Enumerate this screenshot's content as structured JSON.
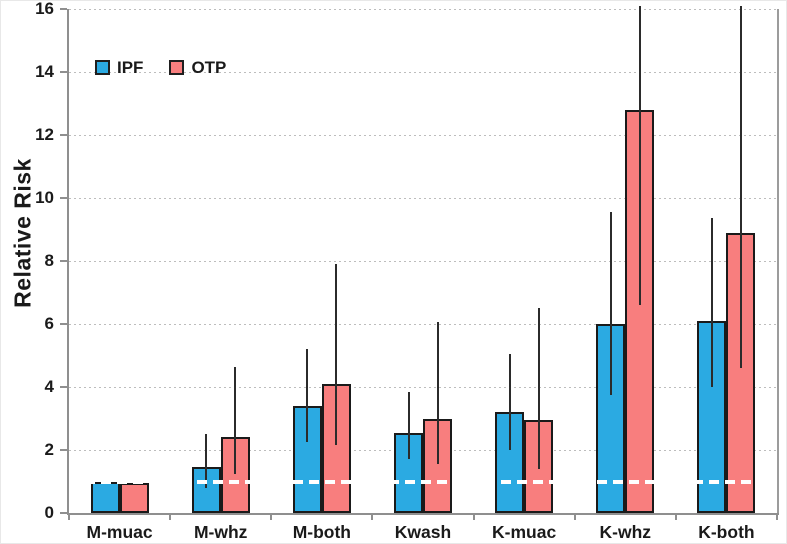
{
  "chart_data": {
    "type": "bar",
    "title": "",
    "ylabel": "Relative Risk",
    "xlabel": "",
    "ylim": [
      0,
      16
    ],
    "yticks": [
      0,
      2,
      4,
      6,
      8,
      10,
      12,
      14,
      16
    ],
    "grid": "horizontal dotted gridlines at each ytick",
    "legend_position": "inside top-left",
    "reference_line": {
      "value": 1,
      "color": "#ffffff",
      "style": "dashed"
    },
    "categories": [
      "M-muac",
      "M-whz",
      "M-both",
      "Kwash",
      "K-muac",
      "K-whz",
      "K-both"
    ],
    "series": [
      {
        "name": "IPF",
        "color": "#2BAAE2",
        "values": [
          1.0,
          1.45,
          3.4,
          2.55,
          3.2,
          6.0,
          6.1
        ],
        "ci_low": [
          null,
          0.8,
          2.25,
          1.7,
          2.0,
          3.75,
          4.0
        ],
        "ci_high": [
          null,
          2.5,
          5.2,
          3.85,
          5.05,
          9.55,
          9.35
        ]
      },
      {
        "name": "OTP",
        "color": "#F87E7E",
        "values": [
          0.95,
          2.4,
          4.1,
          3.0,
          2.95,
          12.8,
          8.9
        ],
        "ci_low": [
          null,
          1.25,
          2.15,
          1.55,
          1.4,
          6.6,
          4.6
        ],
        "ci_high": [
          null,
          4.65,
          7.9,
          6.05,
          6.5,
          16.1,
          16.1
        ]
      }
    ],
    "style": {
      "bar_border": "#1A1A1A",
      "errorbar_color": "#2B2B2B",
      "gridline_color": "#BDBDBD",
      "axis_color": "#8F8F8F",
      "text_color": "#1A1A1A",
      "background": "#FFFFFF"
    }
  }
}
